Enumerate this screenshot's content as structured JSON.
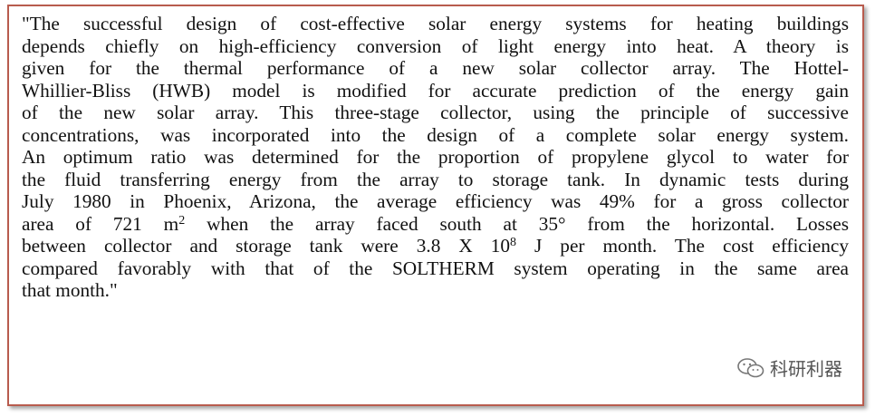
{
  "quote": {
    "lines": [
      [
        {
          "text": "\"The successful design of cost-effective solar energy systems for heating buildings"
        }
      ],
      [
        {
          "text": "depends chiefly on high-efficiency conversion of light energy into heat.  A theory is"
        }
      ],
      [
        {
          "text": "given for the thermal performance of a new solar collector array.  The Hottel-"
        }
      ],
      [
        {
          "text": "Whillier-Bliss (HWB) model is modified for accurate prediction of the energy gain"
        }
      ],
      [
        {
          "text": "of the new solar array.  This three-stage collector, using the principle of successive"
        }
      ],
      [
        {
          "text": "concentrations, was incorporated into the design of a complete solar energy system."
        }
      ],
      [
        {
          "text": "An optimum ratio was determined for the proportion of propylene glycol to water for"
        }
      ],
      [
        {
          "text": "the fluid transferring energy from the array to storage tank.  In dynamic tests during"
        }
      ],
      [
        {
          "text": "July 1980 in Phoenix, Arizona, the average efficiency was 49% for a gross collector"
        }
      ],
      [
        {
          "text": "area of 721 m"
        },
        {
          "sup": "2"
        },
        {
          "text": " when the array faced south at 35° from the horizontal.  Losses"
        }
      ],
      [
        {
          "text": "between collector and storage tank were 3.8 X 10"
        },
        {
          "sup": "8"
        },
        {
          "text": " J per month.  The cost efficiency"
        }
      ],
      [
        {
          "text": "compared favorably with that of the SOLTHERM system operating in the same area"
        }
      ],
      [
        {
          "text": "that month.\""
        }
      ]
    ]
  },
  "watermark": {
    "text": "科研利器"
  }
}
